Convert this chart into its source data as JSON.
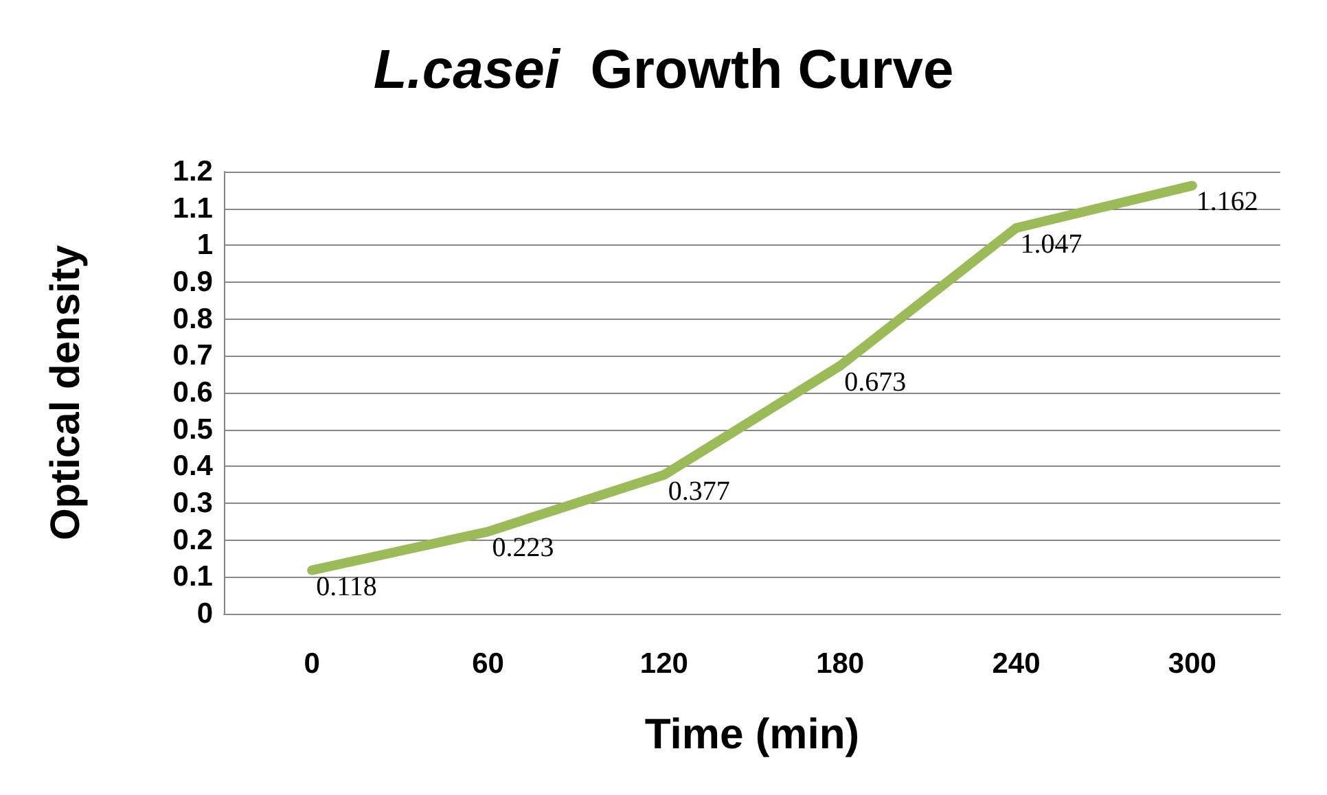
{
  "chart_data": {
    "type": "line",
    "title": "L.casei  Growth Curve",
    "xlabel": "Time (min)",
    "ylabel": "Optical density",
    "categories": [
      "0",
      "60",
      "120",
      "180",
      "240",
      "300"
    ],
    "series": [
      {
        "color": "#9bbb59",
        "values": [
          0.118,
          0.223,
          0.377,
          0.673,
          1.047,
          1.162
        ]
      }
    ],
    "ylim": [
      0,
      1.2
    ],
    "yticks": [
      0,
      0.1,
      0.2,
      0.3,
      0.4,
      0.5,
      0.6,
      0.7,
      0.8,
      0.9,
      1,
      1.1,
      1.2
    ],
    "grid": "y",
    "marker": "none",
    "line_style": "solid",
    "data_labels": true
  }
}
